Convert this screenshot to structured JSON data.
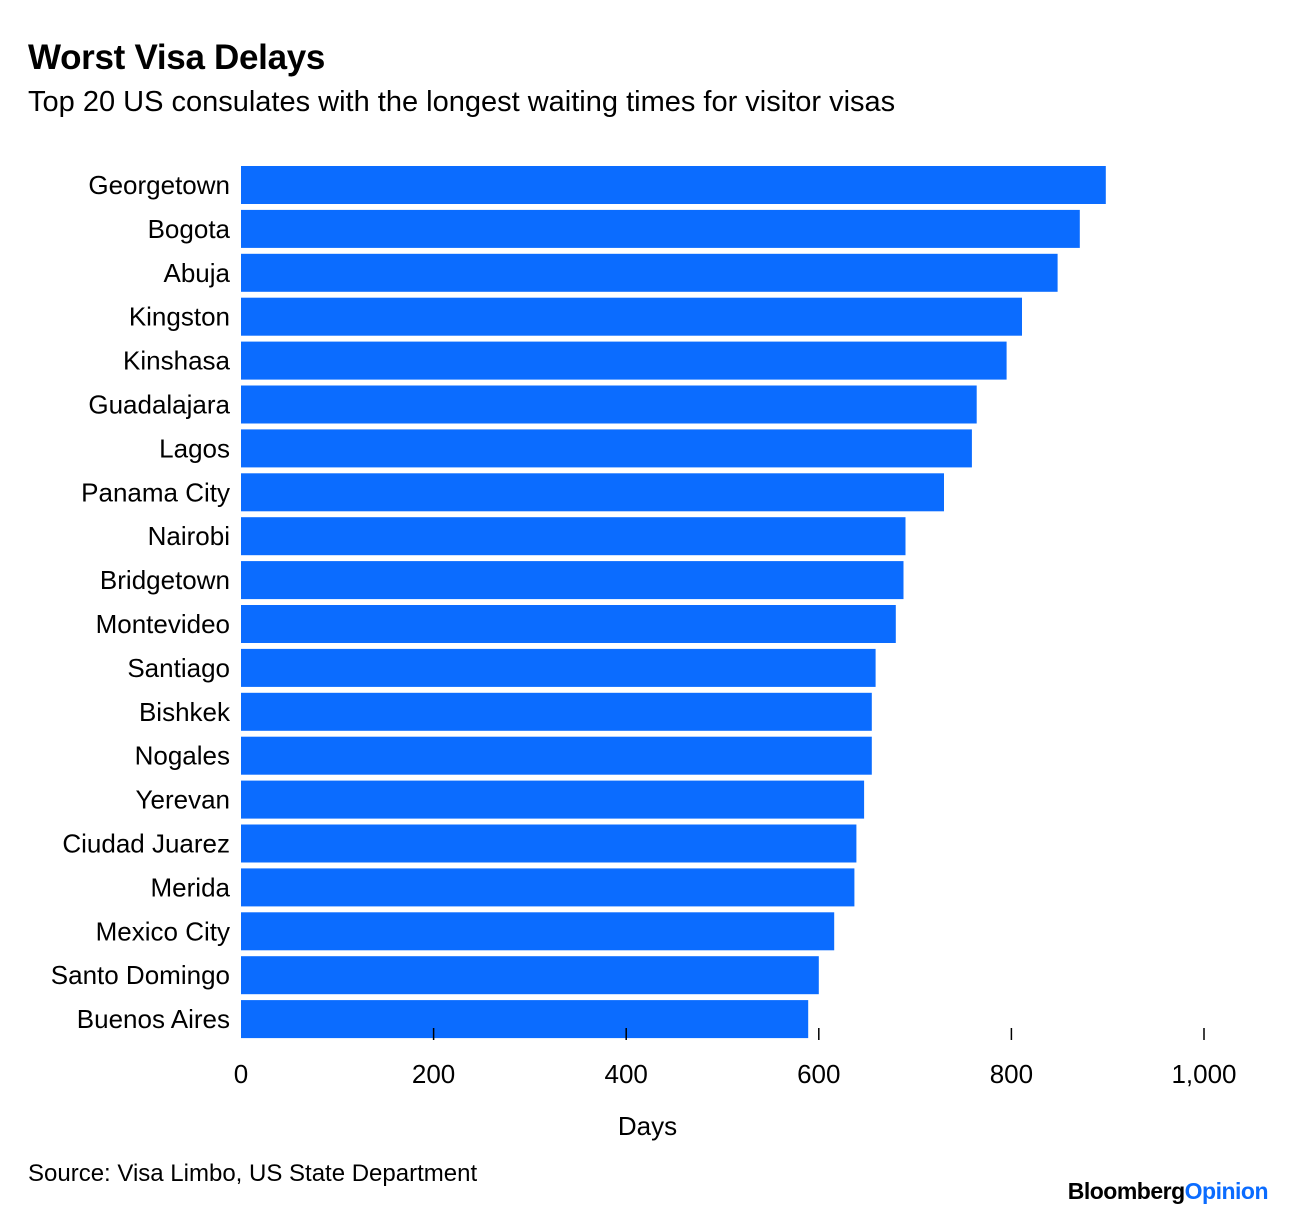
{
  "header": {
    "title": "Worst Visa Delays",
    "subtitle": "Top 20 US consulates with the longest waiting times for visitor visas"
  },
  "footer": {
    "source": "Source: Visa Limbo, US State Department",
    "brand_part1": "Bloomberg",
    "brand_part2": "Opinion"
  },
  "colors": {
    "bar": "#0b6cff",
    "brand_accent": "#0b6cff"
  },
  "chart_data": {
    "type": "bar",
    "orientation": "horizontal",
    "title": "Worst Visa Delays",
    "subtitle": "Top 20 US consulates with the longest waiting times for visitor visas",
    "xlabel": "Days",
    "ylabel": "",
    "xlim": [
      0,
      1000
    ],
    "xticks": [
      0,
      200,
      400,
      600,
      800,
      1000
    ],
    "xtick_labels": [
      "0",
      "200",
      "400",
      "600",
      "800",
      "1,000"
    ],
    "grid": false,
    "categories": [
      "Georgetown",
      "Bogota",
      "Abuja",
      "Kingston",
      "Kinshasa",
      "Guadalajara",
      "Lagos",
      "Panama City",
      "Nairobi",
      "Bridgetown",
      "Montevideo",
      "Santiago",
      "Bishkek",
      "Nogales",
      "Yerevan",
      "Ciudad Juarez",
      "Merida",
      "Mexico City",
      "Santo Domingo",
      "Buenos Aires"
    ],
    "values": [
      898,
      871,
      848,
      811,
      795,
      764,
      759,
      730,
      690,
      688,
      680,
      659,
      655,
      655,
      647,
      639,
      637,
      616,
      600,
      589
    ]
  }
}
